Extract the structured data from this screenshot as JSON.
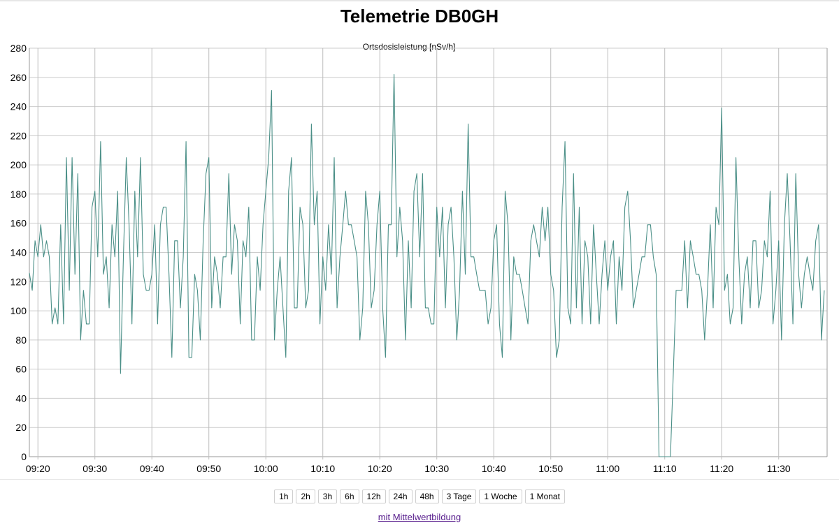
{
  "page": {
    "title": "Telemetrie DB0GH",
    "link_label": "mit Mittelwertbildung"
  },
  "range_buttons": [
    "1h",
    "2h",
    "3h",
    "6h",
    "12h",
    "24h",
    "48h",
    "3 Tage",
    "1 Woche",
    "1 Monat"
  ],
  "colors": {
    "series": "#4a8f87",
    "link": "#551a8b"
  },
  "chart_data": {
    "type": "line",
    "title": "Ortsdosisleistung [nSv/h]",
    "xlabel": "",
    "ylabel": "",
    "ylim": [
      0,
      280
    ],
    "yticks": [
      0,
      20,
      40,
      60,
      80,
      100,
      120,
      140,
      160,
      180,
      200,
      220,
      240,
      260,
      280
    ],
    "xlim": [
      "09:18:30",
      "11:38:30"
    ],
    "xticks": [
      "09:20",
      "09:30",
      "09:40",
      "09:50",
      "10:00",
      "10:10",
      "10:20",
      "10:30",
      "10:40",
      "10:50",
      "11:00",
      "11:10",
      "11:20",
      "11:30"
    ],
    "grid": true,
    "legend": "none",
    "series": [
      {
        "x_start": "09:18:30",
        "x_step_seconds": 30,
        "values": [
          126,
          114,
          148,
          137,
          159,
          137,
          148,
          137,
          91,
          102,
          91,
          159,
          91,
          205,
          114,
          205,
          125,
          194,
          80,
          114,
          91,
          91,
          171,
          182,
          137,
          216,
          125,
          137,
          102,
          159,
          137,
          182,
          57,
          137,
          205,
          159,
          91,
          182,
          137,
          205,
          125,
          114,
          114,
          125,
          159,
          91,
          159,
          171,
          171,
          125,
          68,
          148,
          148,
          102,
          137,
          216,
          68,
          68,
          125,
          114,
          80,
          148,
          194,
          205,
          102,
          137,
          125,
          102,
          137,
          137,
          194,
          125,
          159,
          148,
          91,
          148,
          137,
          171,
          80,
          80,
          137,
          114,
          159,
          182,
          205,
          251,
          80,
          114,
          137,
          102,
          68,
          182,
          205,
          102,
          102,
          171,
          159,
          102,
          114,
          228,
          159,
          182,
          91,
          137,
          114,
          159,
          125,
          205,
          102,
          137,
          159,
          182,
          159,
          159,
          148,
          137,
          80,
          102,
          182,
          159,
          102,
          114,
          159,
          182,
          102,
          68,
          159,
          159,
          262,
          137,
          171,
          148,
          80,
          148,
          102,
          182,
          194,
          137,
          194,
          102,
          102,
          91,
          91,
          171,
          137,
          171,
          102,
          159,
          171,
          137,
          80,
          114,
          182,
          125,
          228,
          137,
          137,
          125,
          114,
          114,
          114,
          91,
          102,
          148,
          159,
          91,
          68,
          182,
          159,
          80,
          137,
          125,
          125,
          114,
          102,
          91,
          148,
          159,
          148,
          137,
          171,
          148,
          171,
          125,
          114,
          68,
          80,
          171,
          216,
          102,
          91,
          194,
          102,
          171,
          91,
          148,
          137,
          91,
          159,
          125,
          91,
          125,
          148,
          114,
          137,
          148,
          91,
          137,
          114,
          171,
          182,
          148,
          102,
          114,
          125,
          137,
          137,
          159,
          159,
          137,
          125,
          0,
          0,
          0,
          0,
          0,
          57,
          114,
          114,
          114,
          148,
          102,
          148,
          137,
          125,
          125,
          114,
          80,
          114,
          159,
          102,
          171,
          159,
          239,
          114,
          125,
          91,
          102,
          205,
          137,
          91,
          125,
          137,
          102,
          148,
          148,
          102,
          114,
          148,
          137,
          182,
          91,
          114,
          148,
          80,
          159,
          194,
          148,
          91,
          194,
          125,
          102,
          125,
          137,
          125,
          114,
          148,
          159,
          80,
          114
        ]
      }
    ]
  }
}
